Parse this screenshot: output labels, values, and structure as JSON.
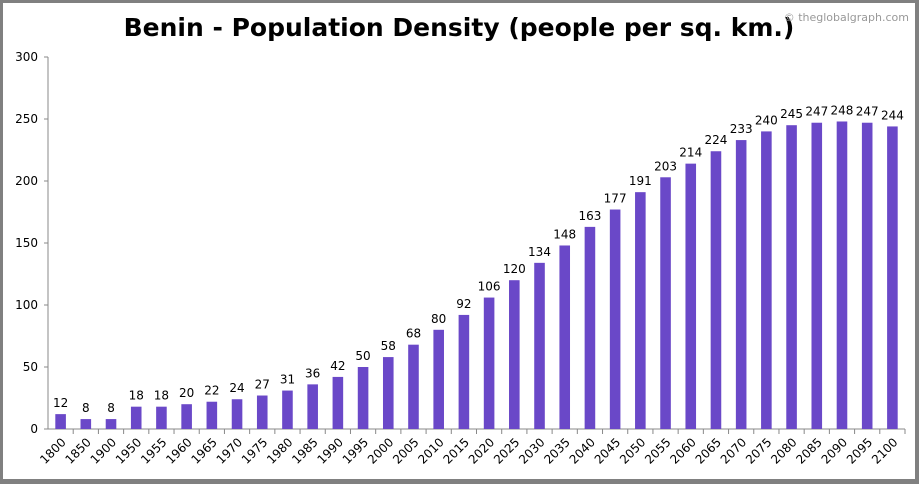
{
  "chart_data": {
    "type": "bar",
    "title": "Benin - Population Density (people per sq. km.)",
    "watermark": "© theglobalgraph.com",
    "xlabel": "",
    "ylabel": "",
    "ylim": [
      0,
      300
    ],
    "yticks": [
      0,
      50,
      100,
      150,
      200,
      250,
      300
    ],
    "grid": false,
    "bar_color": "#6a48c8",
    "categories": [
      "1800",
      "1850",
      "1900",
      "1950",
      "1955",
      "1960",
      "1965",
      "1970",
      "1975",
      "1980",
      "1985",
      "1990",
      "1995",
      "2000",
      "2005",
      "2010",
      "2015",
      "2020",
      "2025",
      "2030",
      "2035",
      "2040",
      "2045",
      "2050",
      "2055",
      "2060",
      "2065",
      "2070",
      "2075",
      "2080",
      "2085",
      "2090",
      "2095",
      "2100"
    ],
    "values": [
      12,
      8,
      8,
      18,
      18,
      20,
      22,
      24,
      27,
      31,
      36,
      42,
      50,
      58,
      68,
      80,
      92,
      106,
      120,
      134,
      148,
      163,
      177,
      191,
      203,
      214,
      224,
      233,
      240,
      245,
      247,
      248,
      247,
      244
    ]
  }
}
